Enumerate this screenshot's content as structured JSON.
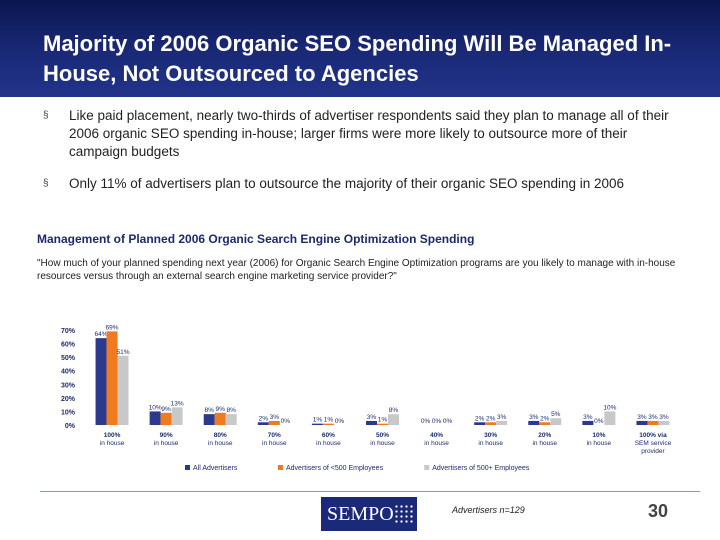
{
  "slide": {
    "title": "Majority of 2006 Organic SEO Spending Will Be Managed In-House, Not Outsourced to Agencies",
    "bullets": [
      "Like paid placement, nearly two-thirds of advertiser respondents said they plan to manage all of their 2006 organic SEO spending in-house; larger firms were more likely to outsource more of their campaign budgets",
      "Only 11% of advertisers plan to outsource the majority of their organic SEO spending in 2006"
    ],
    "bullet_mark": "§",
    "chart_title": "Management of Planned 2006 Organic Search Engine Optimization Spending",
    "question": "\"How much of your planned spending next year (2006) for Organic Search Engine Optimization programs are you likely to manage with in-house resources versus through an external search engine marketing service provider?\"",
    "source_note": "Advertisers n=129",
    "page_number": "30",
    "logo_text": "SEMPO"
  },
  "chart_data": {
    "type": "bar",
    "categories": [
      [
        "100%",
        "in house"
      ],
      [
        "90%",
        "in house"
      ],
      [
        "80%",
        "in house"
      ],
      [
        "70%",
        "in house"
      ],
      [
        "60%",
        "in house"
      ],
      [
        "50%",
        "in house"
      ],
      [
        "40%",
        "in house"
      ],
      [
        "30%",
        "in house"
      ],
      [
        "20%",
        "in house"
      ],
      [
        "10%",
        "in house"
      ],
      [
        "100% via",
        "SEM service",
        "provider"
      ]
    ],
    "series": [
      {
        "name": "All Advertisers",
        "color": "#2b3a8c",
        "values": [
          64,
          10,
          8,
          2,
          1,
          3,
          0,
          2,
          3,
          3,
          3
        ]
      },
      {
        "name": "Advertisers of <500 Employees",
        "color": "#f07b1e",
        "values": [
          69,
          9,
          9,
          3,
          1,
          1,
          0,
          2,
          2,
          0,
          3
        ]
      },
      {
        "name": "Advertisers of 500+ Employees",
        "color": "#c8c8c8",
        "values": [
          51,
          13,
          8,
          0,
          0,
          8,
          0,
          3,
          5,
          10,
          3
        ]
      }
    ],
    "yticks": [
      0,
      10,
      20,
      30,
      40,
      50,
      60,
      70
    ],
    "ylim": [
      0,
      70
    ],
    "ytick_suffix": "%",
    "value_suffix": "%",
    "legend_position": "bottom"
  }
}
